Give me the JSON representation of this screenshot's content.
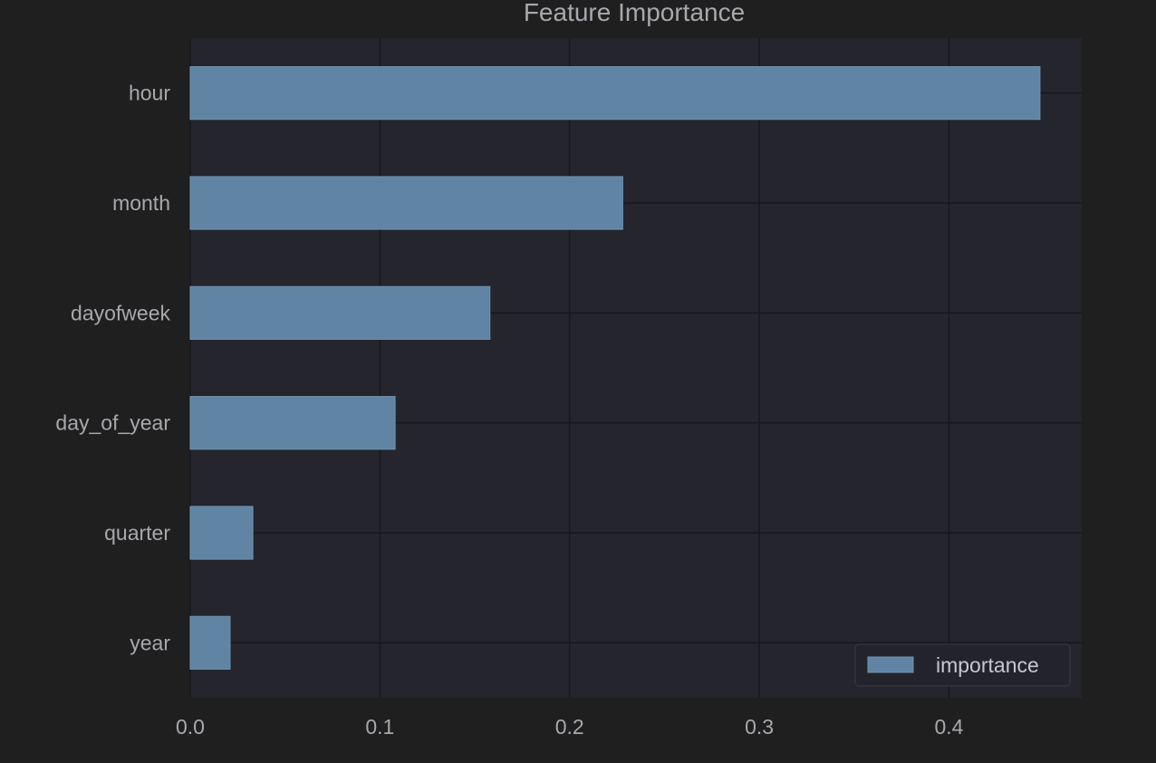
{
  "chart_data": {
    "type": "bar",
    "orientation": "horizontal",
    "title": "Feature Importance",
    "categories": [
      "hour",
      "month",
      "dayofweek",
      "day_of_year",
      "quarter",
      "year"
    ],
    "series": [
      {
        "name": "importance",
        "values": [
          0.448,
          0.228,
          0.158,
          0.108,
          0.033,
          0.021
        ]
      }
    ],
    "xlim": [
      0,
      0.47
    ],
    "xticks": [
      0.0,
      0.1,
      0.2,
      0.3,
      0.4
    ],
    "xtick_labels": [
      "0.0",
      "0.1",
      "0.2",
      "0.3",
      "0.4"
    ],
    "xlabel": "",
    "ylabel": "",
    "grid": true,
    "legend_position": "bottom-right",
    "colors": {
      "page_background": "#1f1f20",
      "plot_background": "#24252d",
      "bar_fill": "#5f84a4",
      "bar_edge": "#7193b0",
      "grid": "#17181c",
      "legend_background": "#23242b",
      "legend_border": "#3a3b42"
    }
  }
}
